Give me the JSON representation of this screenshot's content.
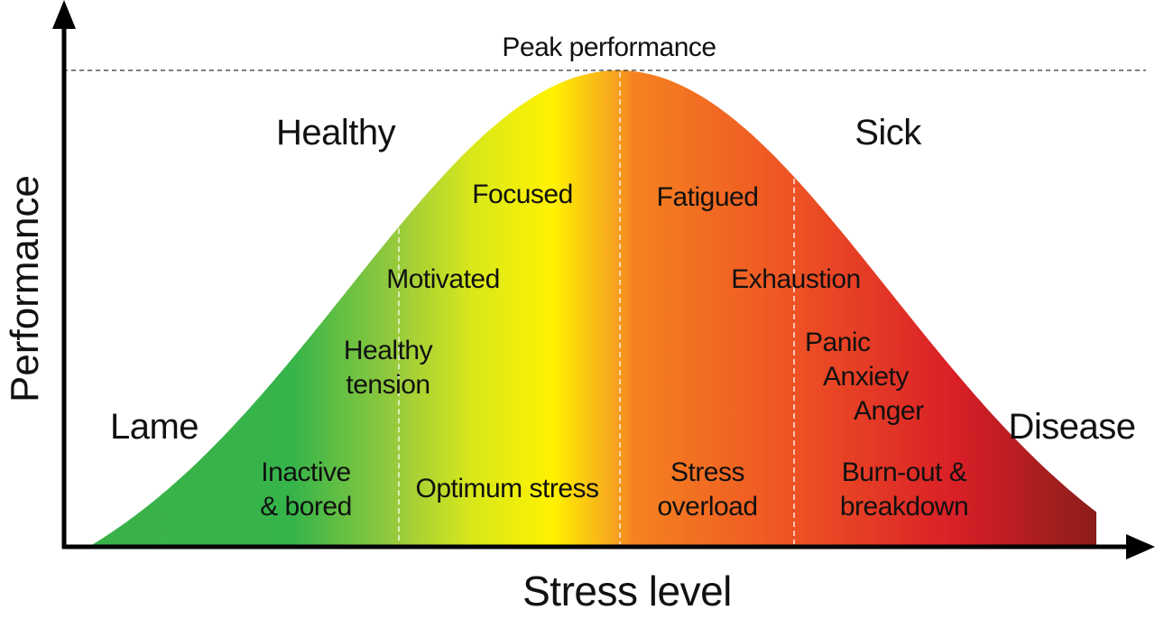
{
  "axes": {
    "x_label": "Stress level",
    "y_label": "Performance"
  },
  "peak_label": "Peak performance",
  "regions_outer": {
    "healthy": "Healthy",
    "sick": "Sick",
    "lame": "Lame",
    "disease": "Disease"
  },
  "zones": [
    {
      "name": "Inactive & bored",
      "lines": [
        "Inactive",
        "& bored"
      ]
    },
    {
      "name": "Optimum stress",
      "lines": [
        "Optimum stress"
      ]
    },
    {
      "name": "Stress overload",
      "lines": [
        "Stress",
        "overload"
      ]
    },
    {
      "name": "Burn-out & breakdown",
      "lines": [
        "Burn-out &",
        "breakdown"
      ]
    }
  ],
  "states": {
    "healthy_tension": [
      "Healthy",
      "tension"
    ],
    "motivated": "Motivated",
    "focused": "Focused",
    "fatigued": "Fatigued",
    "exhaustion": "Exhaustion",
    "panic": [
      "Panic",
      "Anxiety",
      "Anger"
    ]
  },
  "colors": {
    "green": "#35b44a",
    "yellow": "#fff200",
    "orange": "#f58220",
    "red": "#d91f27",
    "dark_red": "#8b1d1a"
  }
}
